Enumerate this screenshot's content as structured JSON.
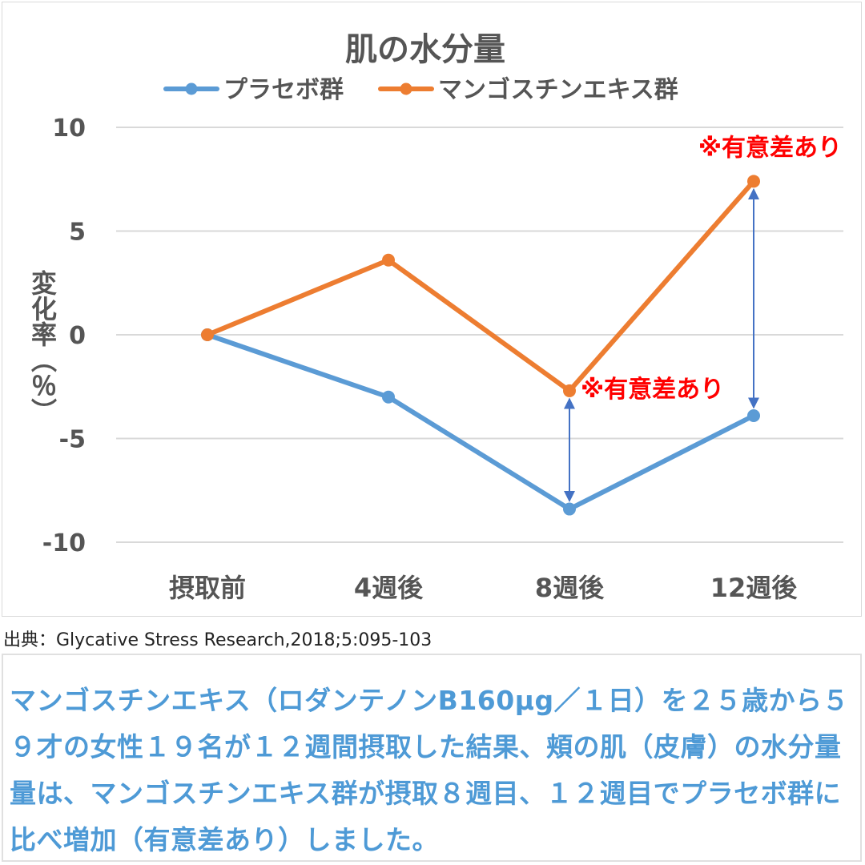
{
  "chart_data": {
    "type": "line",
    "title": "肌の水分量",
    "ylabel": "変化率（％）",
    "xlabel": "",
    "categories": [
      "摂取前",
      "4週後",
      "8週後",
      "12週後"
    ],
    "ylim": [
      -10,
      10
    ],
    "yticks": [
      10,
      5,
      0,
      -5,
      -10
    ],
    "grid": true,
    "legend_position": "top",
    "series": [
      {
        "name": "プラセボ群",
        "color": "#5b9bd5",
        "values": [
          0,
          -3.0,
          -8.4,
          -3.9
        ]
      },
      {
        "name": "マンゴスチンエキス群",
        "color": "#ed7d31",
        "values": [
          0,
          3.6,
          -2.7,
          7.4
        ]
      }
    ],
    "annotations": [
      {
        "text": "※有意差あり",
        "category_index": 2,
        "color": "#ff0000"
      },
      {
        "text": "※有意差あり",
        "category_index": 3,
        "color": "#ff0000"
      }
    ],
    "arrow_color": "#4472c4"
  },
  "source": "出典：Glycative Stress Research,2018;5:095-103",
  "caption": "マンゴスチンエキス（ロダンテノンB160μg／１日）を２５歳から５９才の女性１９名が１２週間摂取した結果、頬の肌（皮膚）の水分量量は、マンゴスチンエキス群が摂取８週目、１２週目でプラセボ群に比べ増加（有意差あり）しました。"
}
